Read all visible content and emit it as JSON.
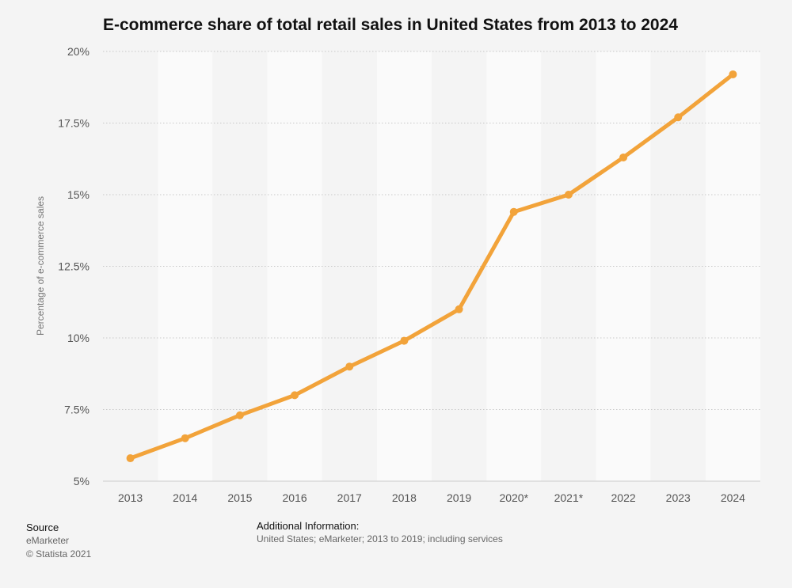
{
  "chart_data": {
    "type": "line",
    "title": "E-commerce share of total retail sales in United States from 2013 to 2024",
    "xlabel": "",
    "ylabel": "Percentage of e-commerce sales",
    "categories": [
      "2013",
      "2014",
      "2015",
      "2016",
      "2017",
      "2018",
      "2019",
      "2020*",
      "2021*",
      "2022",
      "2023",
      "2024"
    ],
    "series": [
      {
        "name": "E-commerce share",
        "values": [
          5.8,
          6.5,
          7.3,
          8.0,
          9.0,
          9.9,
          11.0,
          14.4,
          15.0,
          16.3,
          17.7,
          19.2
        ]
      }
    ],
    "ylim": [
      5,
      20
    ],
    "yticks": [
      5,
      7.5,
      10,
      12.5,
      15,
      17.5,
      20
    ],
    "ytick_labels": [
      "5%",
      "7.5%",
      "10%",
      "12.5%",
      "15%",
      "17.5%",
      "20%"
    ],
    "grid": true,
    "line_color": "#f2a33a"
  },
  "source": {
    "title": "Source",
    "lines": [
      "eMarketer",
      "© Statista 2021"
    ]
  },
  "additional_info": {
    "title": "Additional Information:",
    "text": "United States; eMarketer; 2013 to 2019; including services"
  }
}
